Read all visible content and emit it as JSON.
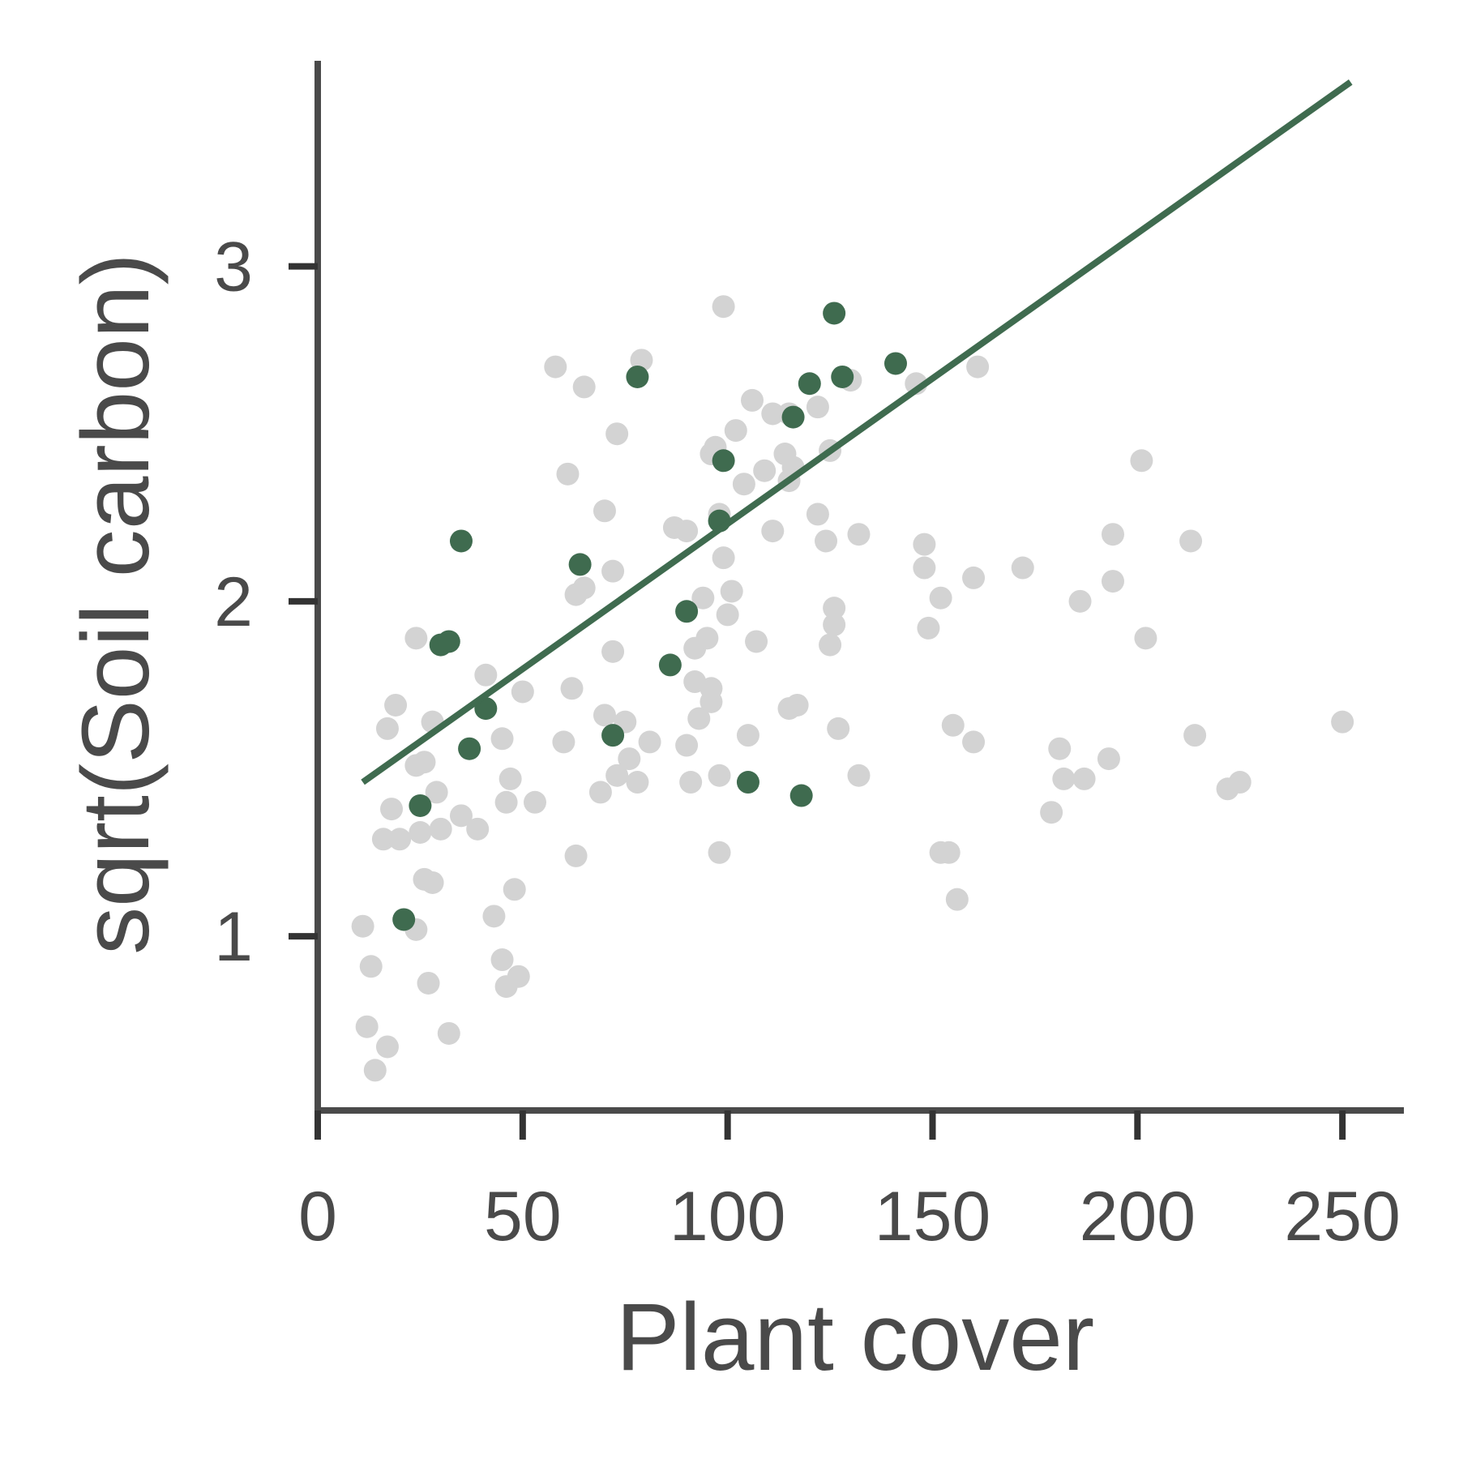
{
  "chart_data": {
    "type": "scatter",
    "xlabel": "Plant cover",
    "ylabel": "sqrt(Soil carbon)",
    "xlim": [
      0,
      265
    ],
    "ylim": [
      0.48,
      3.65
    ],
    "xticks": [
      0,
      50,
      100,
      150,
      200,
      250
    ],
    "yticks": [
      1,
      2,
      3
    ],
    "grid": false,
    "legend": "none",
    "colors": {
      "background_points": "#d3d3d3",
      "highlight_points": "#3f6b4f",
      "trend_line": "#3f6b4f",
      "axis": "#4a4a4a",
      "tick": "#333333",
      "text": "#4a4a4a"
    },
    "series": [
      {
        "values": [
          [
            11,
            1.03
          ],
          [
            13,
            0.91
          ],
          [
            12,
            0.73
          ],
          [
            14,
            0.6
          ],
          [
            17,
            0.67
          ],
          [
            17,
            1.62
          ],
          [
            18,
            1.38
          ],
          [
            19,
            1.69
          ],
          [
            16,
            1.29
          ],
          [
            20,
            1.29
          ],
          [
            24,
            1.89
          ],
          [
            26,
            1.17
          ],
          [
            27,
            0.86
          ],
          [
            28,
            1.16
          ],
          [
            25,
            1.31
          ],
          [
            24,
            1.02
          ],
          [
            26,
            1.52
          ],
          [
            28,
            1.64
          ],
          [
            29,
            1.43
          ],
          [
            30,
            1.32
          ],
          [
            32,
            0.71
          ],
          [
            35,
            1.36
          ],
          [
            39,
            1.32
          ],
          [
            41,
            1.78
          ],
          [
            43,
            1.06
          ],
          [
            45,
            1.59
          ],
          [
            45,
            0.93
          ],
          [
            46,
            0.85
          ],
          [
            47,
            1.47
          ],
          [
            48,
            1.14
          ],
          [
            49,
            0.88
          ],
          [
            50,
            1.73
          ],
          [
            53,
            1.4
          ],
          [
            46,
            1.4
          ],
          [
            24,
            1.51
          ],
          [
            58,
            2.7
          ],
          [
            61,
            2.38
          ],
          [
            60,
            1.58
          ],
          [
            62,
            1.74
          ],
          [
            63,
            2.02
          ],
          [
            63,
            1.24
          ],
          [
            65,
            2.04
          ],
          [
            65,
            2.64
          ],
          [
            70,
            2.27
          ],
          [
            69,
            1.43
          ],
          [
            70,
            1.66
          ],
          [
            72,
            2.09
          ],
          [
            72,
            1.85
          ],
          [
            73,
            2.5
          ],
          [
            73,
            1.48
          ],
          [
            75,
            1.64
          ],
          [
            76,
            1.53
          ],
          [
            78,
            1.46
          ],
          [
            79,
            2.72
          ],
          [
            81,
            1.58
          ],
          [
            87,
            2.22
          ],
          [
            90,
            2.21
          ],
          [
            90,
            1.57
          ],
          [
            92,
            1.76
          ],
          [
            92,
            1.86
          ],
          [
            91,
            1.46
          ],
          [
            93,
            1.65
          ],
          [
            94,
            2.01
          ],
          [
            95,
            1.89
          ],
          [
            96,
            1.74
          ],
          [
            96,
            1.7
          ],
          [
            96,
            2.44
          ],
          [
            97,
            2.46
          ],
          [
            98,
            2.26
          ],
          [
            99,
            2.13
          ],
          [
            98,
            1.48
          ],
          [
            98,
            1.25
          ],
          [
            99,
            2.88
          ],
          [
            100,
            1.96
          ],
          [
            101,
            2.03
          ],
          [
            102,
            2.51
          ],
          [
            104,
            2.35
          ],
          [
            105,
            1.6
          ],
          [
            106,
            2.6
          ],
          [
            107,
            1.88
          ],
          [
            109,
            2.39
          ],
          [
            111,
            2.21
          ],
          [
            111,
            2.56
          ],
          [
            114,
            2.44
          ],
          [
            115,
            2.56
          ],
          [
            116,
            2.4
          ],
          [
            115,
            2.36
          ],
          [
            117,
            1.69
          ],
          [
            115,
            1.68
          ],
          [
            122,
            2.58
          ],
          [
            122,
            2.26
          ],
          [
            124,
            2.18
          ],
          [
            125,
            1.87
          ],
          [
            125,
            2.45
          ],
          [
            126,
            1.98
          ],
          [
            126,
            1.93
          ],
          [
            127,
            1.62
          ],
          [
            130,
            2.66
          ],
          [
            132,
            1.48
          ],
          [
            132,
            2.2
          ],
          [
            146,
            2.65
          ],
          [
            148,
            2.17
          ],
          [
            148,
            2.1
          ],
          [
            149,
            1.92
          ],
          [
            152,
            2.01
          ],
          [
            152,
            1.25
          ],
          [
            154,
            1.25
          ],
          [
            155,
            1.63
          ],
          [
            156,
            1.11
          ],
          [
            160,
            2.07
          ],
          [
            160,
            1.58
          ],
          [
            161,
            2.7
          ],
          [
            172,
            2.1
          ],
          [
            179,
            1.37
          ],
          [
            181,
            1.56
          ],
          [
            182,
            1.47
          ],
          [
            186,
            2.0
          ],
          [
            187,
            1.47
          ],
          [
            193,
            1.53
          ],
          [
            194,
            2.06
          ],
          [
            194,
            2.2
          ],
          [
            201,
            2.42
          ],
          [
            202,
            1.89
          ],
          [
            213,
            2.18
          ],
          [
            214,
            1.6
          ],
          [
            222,
            1.44
          ],
          [
            225,
            1.46
          ],
          [
            250,
            1.64
          ]
        ]
      },
      {
        "values": [
          [
            21,
            1.05
          ],
          [
            25,
            1.39
          ],
          [
            30,
            1.87
          ],
          [
            32,
            1.88
          ],
          [
            35,
            2.18
          ],
          [
            37,
            1.56
          ],
          [
            41,
            1.68
          ],
          [
            64,
            2.11
          ],
          [
            72,
            1.6
          ],
          [
            78,
            2.67
          ],
          [
            86,
            1.81
          ],
          [
            90,
            1.97
          ],
          [
            98,
            2.24
          ],
          [
            99,
            2.42
          ],
          [
            105,
            1.46
          ],
          [
            116,
            2.55
          ],
          [
            118,
            1.42
          ],
          [
            120,
            2.65
          ],
          [
            126,
            2.86
          ],
          [
            128,
            2.67
          ],
          [
            141,
            2.71
          ]
        ]
      }
    ],
    "trend_line": {
      "x": [
        11,
        252
      ],
      "y": [
        1.46,
        3.55
      ]
    }
  }
}
